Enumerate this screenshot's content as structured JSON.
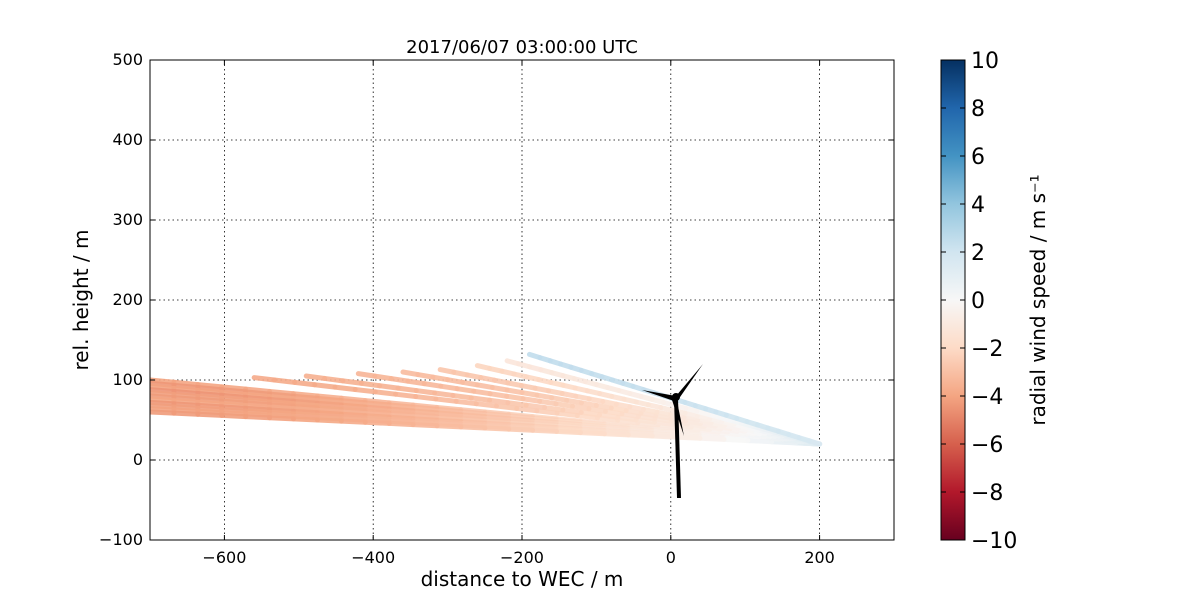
{
  "chart_data": {
    "type": "scatter",
    "title": "2017/06/07 03:00:00 UTC",
    "xlabel": "distance to WEC / m",
    "ylabel": "rel. height / m",
    "xlim": [
      -700,
      300
    ],
    "ylim": [
      -100,
      500
    ],
    "xticks": [
      -600,
      -400,
      -200,
      0,
      200
    ],
    "xtick_labels": [
      "−600",
      "−400",
      "−200",
      "0",
      "200"
    ],
    "yticks": [
      -100,
      0,
      100,
      200,
      300,
      400,
      500
    ],
    "ytick_labels": [
      "−100",
      "0",
      "100",
      "200",
      "300",
      "400",
      "500"
    ],
    "grid": true,
    "colorbar": {
      "label": "radial wind speed / m s⁻¹",
      "range": [
        -10,
        10
      ],
      "ticks": [
        10,
        8,
        6,
        4,
        2,
        0,
        -2,
        -4,
        -6,
        -8,
        -10
      ],
      "tick_labels": [
        "10",
        "8",
        "6",
        "4",
        "2",
        "0",
        "−2",
        "−4",
        "−6",
        "−8",
        "−10"
      ],
      "colormap": "RdBu",
      "colors": [
        "#67001f",
        "#b2182b",
        "#d6604d",
        "#f4a582",
        "#fddbc7",
        "#f7f7f7",
        "#d1e5f0",
        "#92c5de",
        "#4393c3",
        "#2166ac",
        "#053061"
      ]
    },
    "scan": {
      "origin": [
        200,
        20
      ],
      "beams": [
        {
          "end_x": -700,
          "end_y": 100,
          "speed": -4.0
        },
        {
          "end_x": -700,
          "end_y": 96,
          "speed": -4.4
        },
        {
          "end_x": -700,
          "end_y": 92,
          "speed": -4.1
        },
        {
          "end_x": -700,
          "end_y": 88,
          "speed": -4.5
        },
        {
          "end_x": -700,
          "end_y": 84,
          "speed": -4.2
        },
        {
          "end_x": -700,
          "end_y": 80,
          "speed": -4.3
        },
        {
          "end_x": -700,
          "end_y": 76,
          "speed": -4.0
        },
        {
          "end_x": -700,
          "end_y": 72,
          "speed": -4.4
        },
        {
          "end_x": -700,
          "end_y": 68,
          "speed": -4.2
        },
        {
          "end_x": -700,
          "end_y": 64,
          "speed": -4.1
        },
        {
          "end_x": -700,
          "end_y": 60,
          "speed": -4.3
        },
        {
          "end_x": -560,
          "end_y": 103,
          "speed": -3.8
        },
        {
          "end_x": -490,
          "end_y": 105,
          "speed": -3.6
        },
        {
          "end_x": -420,
          "end_y": 108,
          "speed": -3.4
        },
        {
          "end_x": -360,
          "end_y": 110,
          "speed": -3.2
        },
        {
          "end_x": -310,
          "end_y": 113,
          "speed": -2.8
        },
        {
          "end_x": -260,
          "end_y": 118,
          "speed": -2.2
        },
        {
          "end_x": -220,
          "end_y": 124,
          "speed": -1.2
        },
        {
          "end_x": -190,
          "end_y": 132,
          "speed": 2.5
        }
      ],
      "turbine_hub": [
        8,
        78
      ]
    }
  }
}
